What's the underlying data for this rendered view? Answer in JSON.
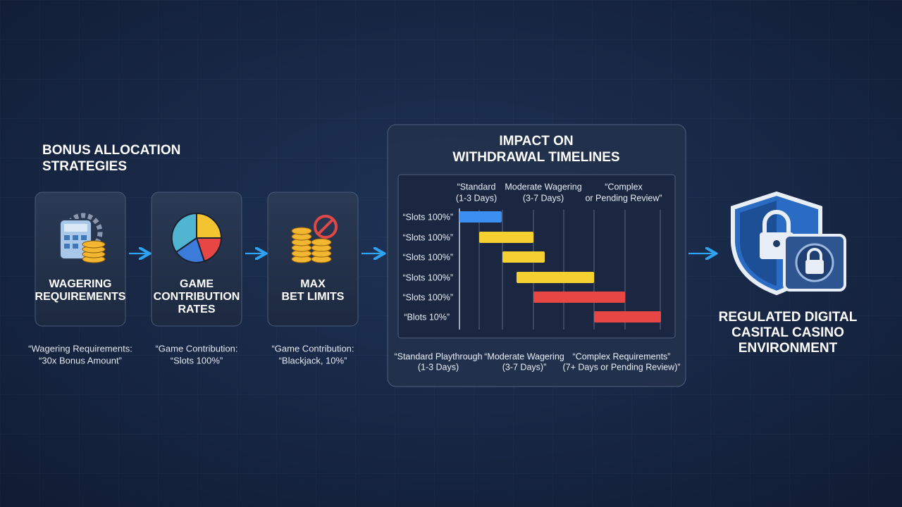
{
  "left_title": [
    "BONUS ALLOCATION",
    "STRATEGIES"
  ],
  "cards": [
    {
      "label": [
        "WAGERING",
        "REQUIREMENTS"
      ],
      "caption": [
        "“Wagering Requirements:",
        "“30x Bonus Amount”"
      ]
    },
    {
      "label": [
        "GAME",
        "CONTRIBUTION",
        "RATES"
      ],
      "caption": [
        "“Game Contribution:",
        "“Slots 100%”"
      ]
    },
    {
      "label": [
        "MAX",
        "BET LIMITS"
      ],
      "caption": [
        "“Game Contribution:",
        "“Blackjack, 10%”"
      ]
    }
  ],
  "panel": {
    "title": [
      "IMPACT ON",
      "WITHDRAWAL TIMELINES"
    ],
    "column_headers": [
      [
        "“Standard",
        "(1-3 Days)"
      ],
      [
        "Moderate Wagering",
        "(3-7 Days)"
      ],
      [
        "“Complex",
        "or Pending Review”"
      ]
    ],
    "rows": [
      "“Slots 100%”",
      "“Slots 100%”",
      "“Slots 100%”",
      "“Slots 100%”",
      "“Slots 100%”",
      "“Blots 10%”"
    ],
    "footer": [
      [
        "“Standard Playthrough",
        "(1-3 Days)"
      ],
      [
        "“Moderate Wagering",
        "(3-7 Days)”"
      ],
      [
        "“Complex Requirements”",
        "(7+ Days or Pending Review)”"
      ]
    ]
  },
  "result_title": [
    "REGULATED DIGITAL",
    "CASITAL CASINO",
    "ENVIRONMENT"
  ]
}
